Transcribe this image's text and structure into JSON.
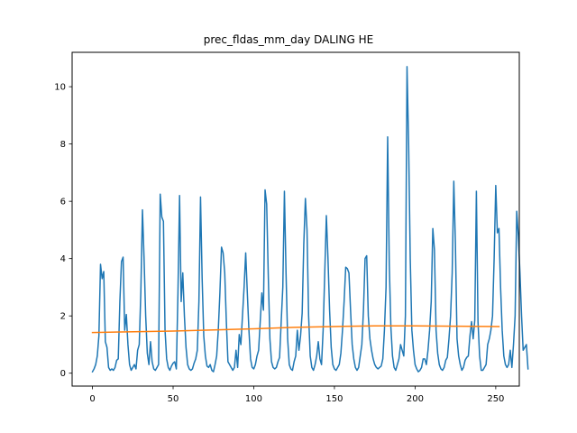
{
  "chart_data": {
    "type": "line",
    "title": "prec_fldas_mm_day DALING HE",
    "xlabel": "",
    "ylabel": "",
    "xlim": [
      -12.6,
      264.6
    ],
    "ylim": [
      -0.45,
      11.2
    ],
    "xticks": [
      0,
      50,
      100,
      150,
      200,
      250
    ],
    "yticks": [
      0,
      2,
      4,
      6,
      8,
      10
    ],
    "grid": false,
    "series": [
      {
        "color": "#1f77b4",
        "values": [
          0.05,
          0.15,
          0.3,
          0.6,
          1.3,
          3.8,
          3.3,
          3.55,
          1.1,
          0.9,
          0.2,
          0.1,
          0.15,
          0.1,
          0.2,
          0.45,
          0.5,
          2.5,
          3.9,
          4.05,
          1.5,
          2.05,
          1.0,
          0.3,
          0.1,
          0.2,
          0.3,
          0.15,
          0.8,
          1.0,
          2.85,
          5.7,
          4.0,
          2.0,
          0.7,
          0.3,
          1.1,
          0.4,
          0.15,
          0.1,
          0.2,
          0.3,
          6.25,
          5.45,
          5.3,
          1.5,
          0.5,
          0.2,
          0.1,
          0.25,
          0.35,
          0.4,
          0.15,
          2.8,
          6.2,
          2.5,
          3.5,
          2.0,
          0.9,
          0.3,
          0.15,
          0.1,
          0.15,
          0.35,
          0.5,
          0.8,
          2.5,
          6.15,
          3.3,
          1.3,
          0.6,
          0.25,
          0.2,
          0.3,
          0.1,
          0.05,
          0.3,
          0.6,
          1.5,
          2.8,
          4.4,
          4.2,
          3.5,
          1.8,
          0.4,
          0.3,
          0.2,
          0.1,
          0.2,
          0.8,
          0.2,
          1.35,
          1.0,
          2.0,
          3.0,
          4.2,
          2.8,
          1.5,
          0.5,
          0.2,
          0.15,
          0.3,
          0.6,
          0.8,
          1.8,
          2.8,
          2.2,
          6.4,
          5.9,
          3.4,
          1.2,
          0.4,
          0.2,
          0.15,
          0.2,
          0.4,
          0.55,
          1.8,
          3.0,
          6.35,
          3.5,
          1.2,
          0.3,
          0.15,
          0.1,
          0.4,
          0.6,
          1.5,
          0.8,
          1.3,
          2.1,
          4.5,
          6.1,
          5.0,
          2.0,
          0.6,
          0.2,
          0.1,
          0.3,
          0.6,
          1.1,
          0.5,
          0.3,
          1.5,
          3.5,
          5.5,
          4.0,
          2.2,
          0.9,
          0.3,
          0.15,
          0.1,
          0.2,
          0.3,
          0.7,
          1.5,
          2.5,
          3.7,
          3.65,
          3.5,
          2.2,
          1.0,
          0.5,
          0.2,
          0.1,
          0.2,
          0.6,
          1.0,
          2.2,
          4.0,
          4.1,
          2.0,
          1.2,
          0.8,
          0.5,
          0.3,
          0.2,
          0.15,
          0.2,
          0.25,
          0.5,
          1.5,
          3.0,
          8.25,
          3.8,
          1.6,
          0.6,
          0.2,
          0.1,
          0.3,
          0.5,
          1.0,
          0.8,
          0.6,
          2.0,
          10.7,
          8.0,
          4.0,
          1.5,
          0.8,
          0.3,
          0.15,
          0.05,
          0.1,
          0.2,
          0.5,
          0.5,
          0.3,
          0.8,
          1.5,
          2.5,
          5.05,
          4.3,
          1.5,
          0.7,
          0.3,
          0.15,
          0.1,
          0.2,
          0.45,
          0.55,
          1.2,
          2.0,
          3.5,
          6.7,
          4.5,
          1.2,
          0.6,
          0.3,
          0.1,
          0.2,
          0.45,
          0.55,
          0.6,
          1.3,
          1.8,
          1.2,
          1.85,
          6.35,
          1.8,
          0.6,
          0.1,
          0.1,
          0.2,
          0.3,
          1.0,
          1.2,
          1.5,
          2.0,
          4.0,
          6.55,
          4.9,
          5.05,
          3.0,
          1.5,
          0.6,
          0.3,
          0.2,
          0.3,
          0.8,
          0.2,
          1.0,
          2.0,
          5.65,
          4.8,
          3.5,
          2.0,
          0.8,
          0.9,
          1.0,
          0.15
        ]
      },
      {
        "color": "#ff7f0e",
        "x": [
          0,
          50,
          100,
          125,
          150,
          175,
          200,
          225,
          252
        ],
        "values": [
          1.42,
          1.47,
          1.55,
          1.6,
          1.63,
          1.65,
          1.65,
          1.64,
          1.63
        ]
      }
    ]
  }
}
